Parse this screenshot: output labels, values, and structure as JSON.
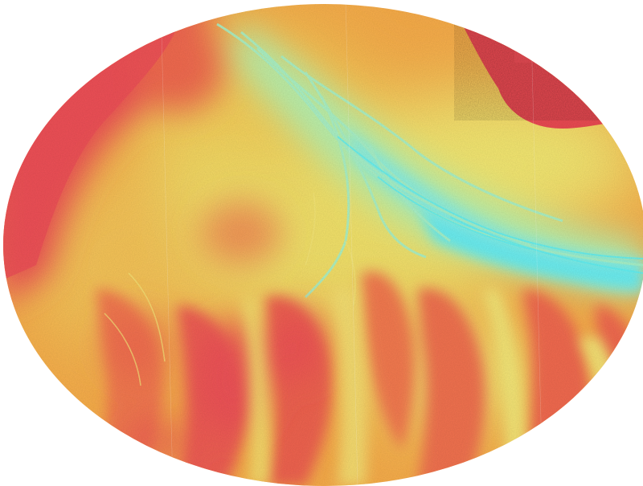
{
  "map": {
    "type": "elevation-relief",
    "shape": "ellipse",
    "palette": {
      "high": "#ef5057",
      "upper": "#f47a4f",
      "mid": "#f8ad4a",
      "low": "#f4f07a",
      "lower": "#b8f6b8",
      "lowest": "#67eef3"
    },
    "features": [
      "braided-river-channel",
      "urban-area-top-right",
      "ridges-bottom",
      "high-ground-left"
    ]
  }
}
